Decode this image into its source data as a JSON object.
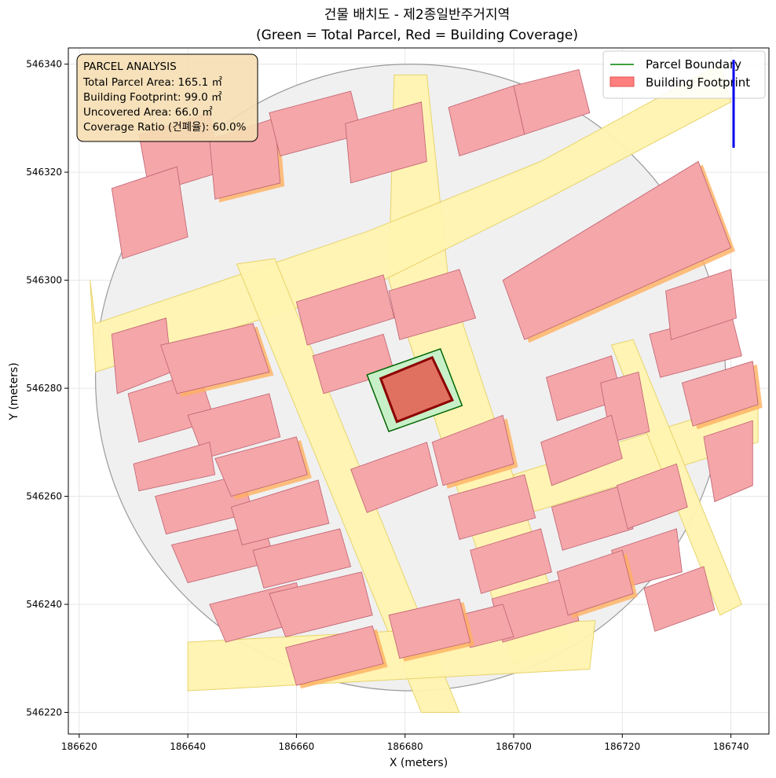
{
  "title": {
    "line1": "건물 배치도 - 제2종일반주거지역",
    "line2": "(Green = Total Parcel, Red = Building Coverage)"
  },
  "axes": {
    "xlabel": "X (meters)",
    "ylabel": "Y (meters)",
    "xticks": [
      186620,
      186640,
      186660,
      186680,
      186700,
      186720,
      186740
    ],
    "yticks": [
      546220,
      546240,
      546260,
      546280,
      546300,
      546320,
      546340
    ],
    "xlim": [
      186618,
      186747
    ],
    "ylim": [
      546216,
      546343
    ],
    "grid": true
  },
  "legend": {
    "placement": "top-right",
    "entries": [
      {
        "label": "Parcel Boundary",
        "color": "#008000"
      },
      {
        "label": "Building Footprint",
        "color": "#ff7f7f"
      }
    ]
  },
  "analysis": {
    "heading": "PARCEL ANALYSIS",
    "lines": [
      "Total Parcel Area: 165.1 ㎡",
      "Building Footprint: 99.0 ㎡",
      "Uncovered Area: 66.0 ㎡",
      "Coverage Ratio (건폐율): 60.0%"
    ]
  },
  "colors": {
    "parcel_fill": "#c8f0c8",
    "parcel_edge": "#006400",
    "footprint_fill": "#e07060",
    "footprint_edge": "#8b0000",
    "road": "#fff3b0",
    "block": "#f0f0f0",
    "neighbor_building": "#f4a6a8",
    "orange_accent": "#ffb060",
    "north_arrow": "#0000ee"
  },
  "map_data": {
    "study_area_center": [
      186681,
      546282
    ],
    "study_area_radius": 58,
    "target_parcel": [
      [
        186673,
        546282.5
      ],
      [
        186686.5,
        546287.3
      ],
      [
        186690.5,
        546276.8
      ],
      [
        186677,
        546272
      ]
    ],
    "target_footprint": [
      [
        186675.5,
        546281.8
      ],
      [
        186685,
        546285.7
      ],
      [
        186688.7,
        546277.8
      ],
      [
        186678.5,
        546273.8
      ]
    ],
    "roads": [
      [
        [
          186678,
          546338
        ],
        [
          186684,
          546338
        ],
        [
          186688,
          546300
        ],
        [
          186710,
          546233
        ],
        [
          186700,
          546229
        ],
        [
          186683,
          546282
        ],
        [
          186677,
          546300
        ]
      ],
      [
        [
          186622,
          546300
        ],
        [
          186623,
          546292
        ],
        [
          186673,
          546309
        ],
        [
          186705,
          546322
        ],
        [
          186738,
          546340
        ],
        [
          186740,
          546333
        ],
        [
          186706,
          546315
        ],
        [
          186676,
          546300
        ],
        [
          186623,
          546283
        ]
      ],
      [
        [
          186649,
          546303
        ],
        [
          186656,
          546304
        ],
        [
          186690,
          546220
        ],
        [
          186683,
          546220
        ]
      ],
      [
        [
          186700,
          546264
        ],
        [
          186745,
          546278
        ],
        [
          186745,
          546270
        ],
        [
          186700,
          546256
        ]
      ],
      [
        [
          186718,
          546288
        ],
        [
          186722,
          546289
        ],
        [
          186742,
          546240
        ],
        [
          186738,
          546238
        ]
      ],
      [
        [
          186640,
          546233
        ],
        [
          186715,
          546237
        ],
        [
          186714,
          546228
        ],
        [
          186640,
          546224
        ]
      ]
    ],
    "buildings": [
      [
        [
          186626,
          546290
        ],
        [
          186636,
          546293
        ],
        [
          186637,
          546283
        ],
        [
          186627,
          546279
        ]
      ],
      [
        [
          186629,
          546279
        ],
        [
          186642,
          546283
        ],
        [
          186645,
          546274
        ],
        [
          186631,
          546270
        ]
      ],
      [
        [
          186635,
          546288
        ],
        [
          186652,
          546292
        ],
        [
          186655,
          546283
        ],
        [
          186638,
          546279
        ]
      ],
      [
        [
          186640,
          546275
        ],
        [
          186655,
          546279
        ],
        [
          186657,
          546271
        ],
        [
          186643,
          546267
        ]
      ],
      [
        [
          186630,
          546266
        ],
        [
          186644,
          546270
        ],
        [
          186645,
          546264
        ],
        [
          186631,
          546261
        ]
      ],
      [
        [
          186634,
          546260
        ],
        [
          186650,
          546264
        ],
        [
          186652,
          546257
        ],
        [
          186636,
          546253
        ]
      ],
      [
        [
          186637,
          546251
        ],
        [
          186654,
          546255
        ],
        [
          186656,
          546248
        ],
        [
          186640,
          546244
        ]
      ],
      [
        [
          186645,
          546267
        ],
        [
          186660,
          546271
        ],
        [
          186662,
          546264
        ],
        [
          186648,
          546260
        ]
      ],
      [
        [
          186648,
          546258
        ],
        [
          186664,
          546263
        ],
        [
          186666,
          546255
        ],
        [
          186650,
          546251
        ]
      ],
      [
        [
          186652,
          546250
        ],
        [
          186668,
          546254
        ],
        [
          186670,
          546247
        ],
        [
          186654,
          546243
        ]
      ],
      [
        [
          186644,
          546240
        ],
        [
          186660,
          546244
        ],
        [
          186662,
          546237
        ],
        [
          186647,
          546233
        ]
      ],
      [
        [
          186655,
          546242
        ],
        [
          186672,
          546246
        ],
        [
          186674,
          546238
        ],
        [
          186658,
          546234
        ]
      ],
      [
        [
          186658,
          546232
        ],
        [
          186674,
          546236
        ],
        [
          186676,
          546229
        ],
        [
          186660,
          546225
        ]
      ],
      [
        [
          186660,
          546296
        ],
        [
          186676,
          546301
        ],
        [
          186678,
          546293
        ],
        [
          186662,
          546288
        ]
      ],
      [
        [
          186663,
          546286
        ],
        [
          186676,
          546290
        ],
        [
          186678,
          546283
        ],
        [
          186665,
          546279
        ]
      ],
      [
        [
          186677,
          546298
        ],
        [
          186690,
          546302
        ],
        [
          186693,
          546293
        ],
        [
          186679,
          546289
        ]
      ],
      [
        [
          186670,
          546265
        ],
        [
          186684,
          546270
        ],
        [
          186686,
          546262
        ],
        [
          186673,
          546257
        ]
      ],
      [
        [
          186685,
          546270
        ],
        [
          186698,
          546275
        ],
        [
          186700,
          546266
        ],
        [
          186687,
          546262
        ]
      ],
      [
        [
          186688,
          546260
        ],
        [
          186702,
          546264
        ],
        [
          186704,
          546256
        ],
        [
          186690,
          546252
        ]
      ],
      [
        [
          186692,
          546250
        ],
        [
          186705,
          546254
        ],
        [
          186707,
          546246
        ],
        [
          186694,
          546242
        ]
      ],
      [
        [
          186696,
          546241
        ],
        [
          186710,
          546245
        ],
        [
          186712,
          546237
        ],
        [
          186698,
          546233
        ]
      ],
      [
        [
          186690,
          546238
        ],
        [
          186698,
          546240
        ],
        [
          186700,
          546234
        ],
        [
          186692,
          546232
        ]
      ],
      [
        [
          186677,
          546238
        ],
        [
          186690,
          546241
        ],
        [
          186692,
          546233
        ],
        [
          186679,
          546230
        ]
      ],
      [
        [
          186706,
          546282
        ],
        [
          186718,
          546286
        ],
        [
          186720,
          546278
        ],
        [
          186708,
          546274
        ]
      ],
      [
        [
          186716,
          546281
        ],
        [
          186723,
          546283
        ],
        [
          186725,
          546272
        ],
        [
          186718,
          546270
        ]
      ],
      [
        [
          186705,
          546270
        ],
        [
          186718,
          546275
        ],
        [
          186720,
          546267
        ],
        [
          186707,
          546262
        ]
      ],
      [
        [
          186725,
          546290
        ],
        [
          186740,
          546294
        ],
        [
          186742,
          546286
        ],
        [
          186727,
          546282
        ]
      ],
      [
        [
          186731,
          546281
        ],
        [
          186744,
          546285
        ],
        [
          186745,
          546277
        ],
        [
          186733,
          546273
        ]
      ],
      [
        [
          186707,
          546258
        ],
        [
          186720,
          546262
        ],
        [
          186722,
          546254
        ],
        [
          186709,
          546250
        ]
      ],
      [
        [
          186719,
          546262
        ],
        [
          186730,
          546266
        ],
        [
          186732,
          546258
        ],
        [
          186721,
          546254
        ]
      ],
      [
        [
          186718,
          546250
        ],
        [
          186730,
          546254
        ],
        [
          186731,
          546246
        ],
        [
          186720,
          546243
        ]
      ],
      [
        [
          186724,
          546243
        ],
        [
          186735,
          546247
        ],
        [
          186737,
          546239
        ],
        [
          186726,
          546235
        ]
      ],
      [
        [
          186708,
          546246
        ],
        [
          186720,
          546250
        ],
        [
          186722,
          546242
        ],
        [
          186710,
          546238
        ]
      ],
      [
        [
          186728,
          546298
        ],
        [
          186740,
          546302
        ],
        [
          186741,
          546293
        ],
        [
          186729,
          546289
        ]
      ],
      [
        [
          186735,
          546271
        ],
        [
          186744,
          546274
        ],
        [
          186744,
          546262
        ],
        [
          186737,
          546259
        ]
      ],
      [
        [
          186631,
          546327
        ],
        [
          186644,
          546331
        ],
        [
          186646,
          546320
        ],
        [
          186633,
          546316
        ]
      ],
      [
        [
          186626,
          546317
        ],
        [
          186638,
          546321
        ],
        [
          186640,
          546308
        ],
        [
          186628,
          546304
        ]
      ],
      [
        [
          186644,
          546326
        ],
        [
          186656,
          546330
        ],
        [
          186657,
          546318
        ],
        [
          186645,
          546315
        ]
      ],
      [
        [
          186655,
          546331
        ],
        [
          186670,
          546335
        ],
        [
          186672,
          546327
        ],
        [
          186657,
          546323
        ]
      ],
      [
        [
          186669,
          546329
        ],
        [
          186683,
          546333
        ],
        [
          186684,
          546322
        ],
        [
          186670,
          546318
        ]
      ],
      [
        [
          186688,
          546332
        ],
        [
          186700,
          546336
        ],
        [
          186702,
          546327
        ],
        [
          186690,
          546323
        ]
      ],
      [
        [
          186700,
          546336
        ],
        [
          186712,
          546339
        ],
        [
          186714,
          546331
        ],
        [
          186702,
          546327
        ]
      ],
      [
        [
          186698,
          546300
        ],
        [
          186734,
          546322
        ],
        [
          186740,
          546306
        ],
        [
          186702,
          546289
        ]
      ]
    ]
  }
}
